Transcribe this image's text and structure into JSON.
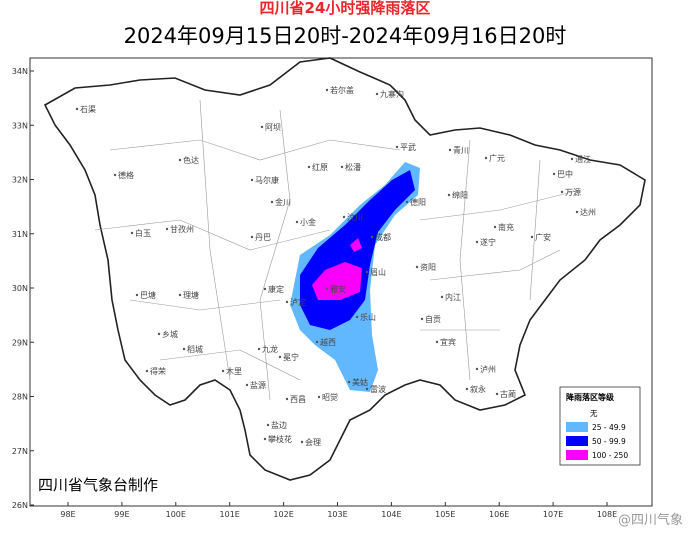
{
  "header": {
    "title": "四川省24小时强降雨落区",
    "subtitle": "2024年09月15日20时-2024年09月16日20时"
  },
  "map": {
    "lat_ticks": [
      {
        "value": 34,
        "label": "34N"
      },
      {
        "value": 33,
        "label": "33N"
      },
      {
        "value": 32,
        "label": "32N"
      },
      {
        "value": 31,
        "label": "31N"
      },
      {
        "value": 30,
        "label": "30N"
      },
      {
        "value": 29,
        "label": "29N"
      },
      {
        "value": 28,
        "label": "28N"
      },
      {
        "value": 27,
        "label": "27N"
      },
      {
        "value": 26,
        "label": "26N"
      }
    ],
    "lon_ticks": [
      {
        "value": 98,
        "label": "98E"
      },
      {
        "value": 99,
        "label": "99E"
      },
      {
        "value": 100,
        "label": "100E"
      },
      {
        "value": 101,
        "label": "101E"
      },
      {
        "value": 102,
        "label": "102E"
      },
      {
        "value": 103,
        "label": "103E"
      },
      {
        "value": 104,
        "label": "104E"
      },
      {
        "value": 105,
        "label": "105E"
      },
      {
        "value": 106,
        "label": "106E"
      },
      {
        "value": 107,
        "label": "107E"
      },
      {
        "value": 108,
        "label": "108E"
      }
    ],
    "places": [
      "石渠",
      "色达",
      "德格",
      "甘孜州",
      "白玉",
      "巴塘",
      "理塘",
      "乡城",
      "稻城",
      "得荣",
      "康定",
      "泸定",
      "九龙",
      "木里",
      "盐源",
      "盐边",
      "攀枝花",
      "会理",
      "西昌",
      "冕宁",
      "越西",
      "昭觉",
      "美姑",
      "雷波",
      "阿坝",
      "红原",
      "若尔盖",
      "九寨沟",
      "松潘",
      "平武",
      "青川",
      "广元",
      "巴中",
      "达州",
      "万源",
      "通江",
      "南充",
      "绵阳",
      "成都",
      "雅安",
      "乐山",
      "眉山",
      "宜宾",
      "泸州",
      "自贡",
      "内江",
      "遂宁",
      "广安",
      "资阳",
      "德阳",
      "古蔺",
      "叙永",
      "汶川",
      "马尔康",
      "金川",
      "小金",
      "丹巴"
    ]
  },
  "legend": {
    "title": "降雨落区等级",
    "items": [
      {
        "label": "无",
        "color": "#ffffff"
      },
      {
        "label": "25 - 49.9",
        "color": "#61b8ff"
      },
      {
        "label": "50 - 99.9",
        "color": "#0000fe"
      },
      {
        "label": "100 - 250",
        "color": "#fa00fa"
      }
    ]
  },
  "credit": "四川省气象台制作",
  "watermark": "@四川气象"
}
